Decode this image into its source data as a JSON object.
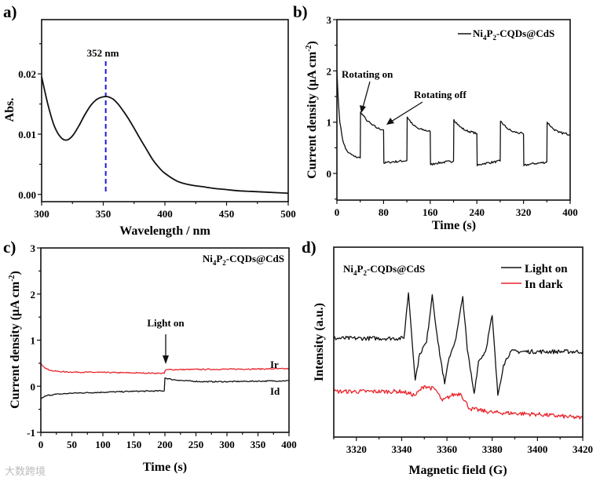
{
  "watermark": "大数跨境",
  "colors": {
    "black": "#111111",
    "red": "#e8252b",
    "blue": "#1a1adc"
  },
  "chart_data": [
    {
      "panel": "a)",
      "type": "line",
      "xlabel": "Wavelength / nm",
      "ylabel": "Abs.",
      "xlim": [
        300,
        500
      ],
      "ylim": [
        -0.0012,
        0.029
      ],
      "xticks": [
        300,
        350,
        400,
        450,
        500
      ],
      "xtick_labels": [
        "300",
        "350",
        "400",
        "450",
        "500"
      ],
      "yticks": [
        0,
        0.01,
        0.02
      ],
      "ytick_labels": [
        "0.00",
        "0.01",
        "0.02"
      ],
      "annotations": {
        "peak_label": "352 nm",
        "peak_x": 352
      },
      "series": [
        {
          "name": "absorbance",
          "color": "#111111",
          "points": [
            [
              300,
              0.0195
            ],
            [
              305,
              0.015
            ],
            [
              310,
              0.0115
            ],
            [
              315,
              0.0096
            ],
            [
              320,
              0.009
            ],
            [
              325,
              0.0097
            ],
            [
              330,
              0.0113
            ],
            [
              335,
              0.0132
            ],
            [
              340,
              0.0148
            ],
            [
              345,
              0.0158
            ],
            [
              350,
              0.0162
            ],
            [
              354,
              0.0162
            ],
            [
              358,
              0.0158
            ],
            [
              362,
              0.015
            ],
            [
              366,
              0.0139
            ],
            [
              370,
              0.0127
            ],
            [
              375,
              0.011
            ],
            [
              380,
              0.0092
            ],
            [
              385,
              0.0075
            ],
            [
              390,
              0.0058
            ],
            [
              395,
              0.0045
            ],
            [
              400,
              0.0035
            ],
            [
              410,
              0.0022
            ],
            [
              420,
              0.0016
            ],
            [
              430,
              0.0013
            ],
            [
              440,
              0.001
            ],
            [
              450,
              0.0008
            ],
            [
              460,
              0.0006
            ],
            [
              470,
              0.0005
            ],
            [
              480,
              0.0004
            ],
            [
              490,
              0.0003
            ],
            [
              500,
              0.0002
            ]
          ]
        }
      ]
    },
    {
      "panel": "b)",
      "type": "line",
      "xlabel": "Time (s)",
      "ylabel": {
        "main": "Current density (μA cm",
        "sup": "-2",
        "end": ")"
      },
      "xlim": [
        0,
        400
      ],
      "ylim": [
        -0.52,
        3
      ],
      "xticks": [
        0,
        80,
        160,
        240,
        320,
        400
      ],
      "xtick_labels": [
        "0",
        "80",
        "160",
        "240",
        "320",
        "400"
      ],
      "yticks": [
        0,
        1,
        2,
        3
      ],
      "ytick_labels": [
        "0",
        "1",
        "2",
        "3"
      ],
      "legend": {
        "pre": "Ni",
        "s1": "4",
        "mid": "P",
        "s2": "2",
        "post": "-CQDs@CdS"
      },
      "annotations": {
        "on": "Rotating on",
        "off": "Rotating off"
      },
      "series": [
        {
          "name": "Ni4P2-CQDs@CdS",
          "color": "#111111",
          "points": [
            [
              0,
              2.0
            ],
            [
              2,
              1.5
            ],
            [
              5,
              1.0
            ],
            [
              10,
              0.65
            ],
            [
              15,
              0.48
            ],
            [
              20,
              0.4
            ],
            [
              30,
              0.33
            ],
            [
              40,
              0.3
            ],
            [
              40.5,
              1.2
            ],
            [
              50,
              1.05
            ],
            [
              60,
              0.95
            ],
            [
              70,
              0.88
            ],
            [
              80,
              0.85
            ],
            [
              80.5,
              0.2
            ],
            [
              90,
              0.22
            ],
            [
              120,
              0.25
            ],
            [
              120.5,
              1.1
            ],
            [
              130,
              0.95
            ],
            [
              140,
              0.87
            ],
            [
              160,
              0.82
            ],
            [
              160.5,
              0.17
            ],
            [
              170,
              0.2
            ],
            [
              200,
              0.24
            ],
            [
              200.5,
              1.05
            ],
            [
              210,
              0.92
            ],
            [
              220,
              0.84
            ],
            [
              240,
              0.78
            ],
            [
              240.5,
              0.15
            ],
            [
              250,
              0.19
            ],
            [
              280,
              0.24
            ],
            [
              280.5,
              1.02
            ],
            [
              290,
              0.9
            ],
            [
              300,
              0.82
            ],
            [
              320,
              0.77
            ],
            [
              320.5,
              0.15
            ],
            [
              330,
              0.18
            ],
            [
              360,
              0.22
            ],
            [
              360.5,
              1.0
            ],
            [
              370,
              0.88
            ],
            [
              380,
              0.8
            ],
            [
              400,
              0.76
            ]
          ]
        }
      ]
    },
    {
      "panel": "c)",
      "type": "line",
      "xlabel": "Time (s)",
      "ylabel": {
        "main": "Current density (μA cm",
        "sup": "-2",
        "end": ")"
      },
      "xlim": [
        0,
        400
      ],
      "ylim": [
        -1,
        3
      ],
      "xticks": [
        0,
        50,
        100,
        150,
        200,
        250,
        300,
        350,
        400
      ],
      "xtick_labels": [
        "0",
        "50",
        "100",
        "150",
        "200",
        "250",
        "300",
        "350",
        "400"
      ],
      "yticks": [
        -1,
        0,
        1,
        2,
        3
      ],
      "ytick_labels": [
        "-1",
        "0",
        "1",
        "2",
        "3"
      ],
      "sample_label": {
        "pre": "Ni",
        "s1": "4",
        "mid": "P",
        "s2": "2",
        "post": "-CQDs@CdS"
      },
      "annotations": {
        "light": "Light on"
      },
      "series": [
        {
          "name": "Ir",
          "color": "#e8252b",
          "points": [
            [
              0,
              0.5
            ],
            [
              5,
              0.42
            ],
            [
              10,
              0.37
            ],
            [
              20,
              0.33
            ],
            [
              40,
              0.31
            ],
            [
              100,
              0.3
            ],
            [
              150,
              0.29
            ],
            [
              199,
              0.28
            ],
            [
              200,
              0.33
            ],
            [
              202,
              0.36
            ],
            [
              300,
              0.37
            ],
            [
              400,
              0.38
            ]
          ]
        },
        {
          "name": "Id",
          "color": "#111111",
          "points": [
            [
              0,
              -0.28
            ],
            [
              5,
              -0.23
            ],
            [
              10,
              -0.2
            ],
            [
              20,
              -0.18
            ],
            [
              50,
              -0.15
            ],
            [
              100,
              -0.13
            ],
            [
              150,
              -0.11
            ],
            [
              199,
              -0.1
            ],
            [
              200,
              0.18
            ],
            [
              210,
              0.15
            ],
            [
              230,
              0.12
            ],
            [
              260,
              0.1
            ],
            [
              300,
              0.1
            ],
            [
              400,
              0.12
            ]
          ]
        }
      ]
    },
    {
      "panel": "d)",
      "type": "line",
      "xlabel": "Magnetic field (G)",
      "ylabel": "Intensity (a.u.)",
      "xlim": [
        3310,
        3420
      ],
      "ylim": [
        0,
        1
      ],
      "xticks": [
        3320,
        3340,
        3360,
        3380,
        3400,
        3420
      ],
      "xtick_labels": [
        "3320",
        "3340",
        "3360",
        "3380",
        "3400",
        "3420"
      ],
      "yticks": [],
      "ytick_labels": [],
      "sample_label": {
        "pre": "Ni",
        "s1": "4",
        "mid": "P",
        "s2": "2",
        "post": "-CQDs@CdS"
      },
      "legend": [
        "Light on",
        "In dark"
      ],
      "series": [
        {
          "name": "Light on",
          "color": "#111111",
          "points": [
            [
              3310,
              0.52
            ],
            [
              3341,
              0.52
            ],
            [
              3343,
              0.76
            ],
            [
              3346,
              0.3
            ],
            [
              3348,
              0.44
            ],
            [
              3351,
              0.5
            ],
            [
              3353.5,
              0.75
            ],
            [
              3356,
              0.5
            ],
            [
              3359,
              0.28
            ],
            [
              3361,
              0.42
            ],
            [
              3364,
              0.52
            ],
            [
              3367,
              0.74
            ],
            [
              3369,
              0.46
            ],
            [
              3372,
              0.23
            ],
            [
              3374,
              0.4
            ],
            [
              3377,
              0.45
            ],
            [
              3380,
              0.64
            ],
            [
              3382.5,
              0.22
            ],
            [
              3385,
              0.38
            ],
            [
              3388,
              0.45
            ],
            [
              3420,
              0.45
            ]
          ]
        },
        {
          "name": "In dark",
          "color": "#e8252b",
          "points": [
            [
              3310,
              0.24
            ],
            [
              3340,
              0.24
            ],
            [
              3346,
              0.22
            ],
            [
              3350,
              0.27
            ],
            [
              3355,
              0.25
            ],
            [
              3358,
              0.19
            ],
            [
              3362,
              0.22
            ],
            [
              3366,
              0.23
            ],
            [
              3370,
              0.15
            ],
            [
              3380,
              0.13
            ],
            [
              3400,
              0.12
            ],
            [
              3420,
              0.1
            ]
          ]
        }
      ]
    }
  ]
}
